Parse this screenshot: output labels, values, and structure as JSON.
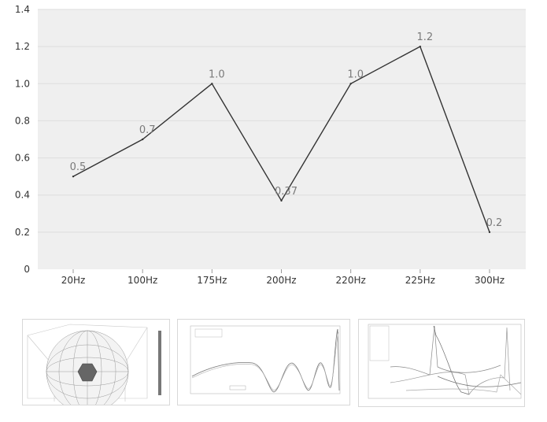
{
  "colors": {
    "plot_bg": "#efefef",
    "grid": "#dedede",
    "line": "#333333",
    "tick_text": "#333333",
    "label_text": "#7a7a7a"
  },
  "chart_data": {
    "type": "line",
    "categories": [
      "20Hz",
      "100Hz",
      "175Hz",
      "200Hz",
      "220Hz",
      "225Hz",
      "300Hz"
    ],
    "series": [
      {
        "values": [
          0.5,
          0.7,
          1.0,
          0.37,
          1.0,
          1.2,
          0.2
        ]
      }
    ],
    "data_labels": [
      "0.5",
      "0.7",
      "1.0",
      "0.37",
      "1.0",
      "1.2",
      "0.2"
    ],
    "yticks": [
      "0",
      "0.2",
      "0.4",
      "0.6",
      "0.8",
      "1.0",
      "1.2",
      "1.4"
    ],
    "ylim": [
      0,
      1.4
    ],
    "grid": true,
    "title": "",
    "xlabel": "",
    "ylabel": ""
  },
  "thumbnails": [
    {
      "kind": "3d-mesh-sphere"
    },
    {
      "kind": "line-plot"
    },
    {
      "kind": "multi-line-plot"
    }
  ]
}
